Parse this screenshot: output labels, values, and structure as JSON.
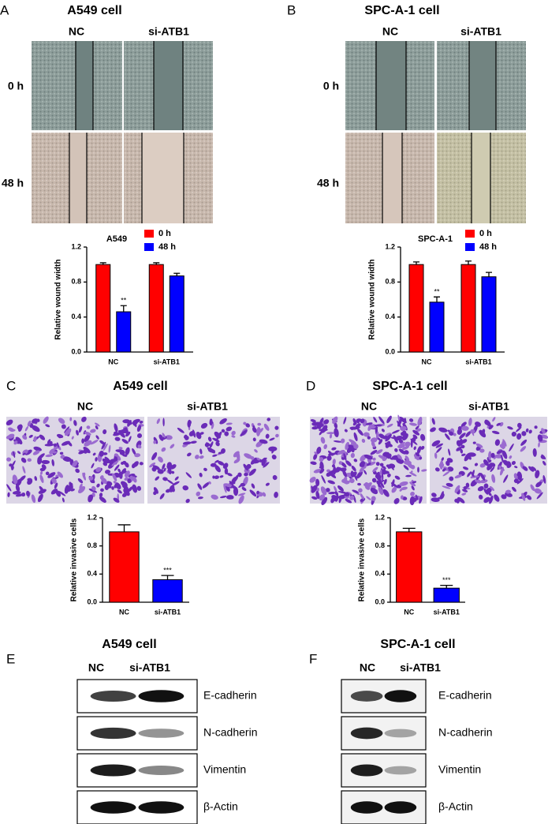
{
  "panels": {
    "A": {
      "letter": "A",
      "title": "A549 cell",
      "columns": [
        "NC",
        "si-ATB1"
      ],
      "rows": [
        "0 h",
        "48 h"
      ]
    },
    "B": {
      "letter": "B",
      "title": "SPC-A-1 cell",
      "columns": [
        "NC",
        "si-ATB1"
      ],
      "rows": [
        "0 h",
        "48 h"
      ]
    },
    "C": {
      "letter": "C",
      "title": "A549 cell",
      "columns": [
        "NC",
        "si-ATB1"
      ]
    },
    "D": {
      "letter": "D",
      "title": "SPC-A-1 cell",
      "columns": [
        "NC",
        "si-ATB1"
      ]
    },
    "E": {
      "letter": "E",
      "title": "A549 cell",
      "columns": [
        "NC",
        "si-ATB1"
      ],
      "bands": [
        "E-cadherin",
        "N-cadherin",
        "Vimentin",
        "β-Actin"
      ]
    },
    "F": {
      "letter": "F",
      "title": "SPC-A-1 cell",
      "columns": [
        "NC",
        "si-ATB1"
      ],
      "bands": [
        "E-cadherin",
        "N-cadherin",
        "Vimentin",
        "β-Actin"
      ]
    }
  },
  "chart_data": [
    {
      "type": "grouped-bar",
      "title": "A549",
      "y_label": "Relative wound width",
      "categories": [
        "NC",
        "si-ATB1"
      ],
      "series": [
        {
          "name": "0 h",
          "color": "#ff0000",
          "values": [
            1.0,
            1.0
          ],
          "errors": [
            0.02,
            0.02
          ]
        },
        {
          "name": "48 h",
          "color": "#0000ff",
          "values": [
            0.46,
            0.87
          ],
          "errors": [
            0.07,
            0.03
          ],
          "significance": [
            "**",
            null
          ]
        }
      ],
      "ylim": [
        0,
        1.2
      ],
      "yticks": [
        {
          "value": 0,
          "label": "0.0"
        },
        0.4,
        0.8,
        1.2
      ]
    },
    {
      "type": "grouped-bar",
      "title": "SPC-A-1",
      "y_label": "Relative wound width",
      "categories": [
        "NC",
        "si-ATB1"
      ],
      "series": [
        {
          "name": "0 h",
          "color": "#ff0000",
          "values": [
            1.0,
            1.0
          ],
          "errors": [
            0.03,
            0.04
          ]
        },
        {
          "name": "48 h",
          "color": "#0000ff",
          "values": [
            0.57,
            0.86
          ],
          "errors": [
            0.06,
            0.05
          ],
          "significance": [
            "**",
            null
          ]
        }
      ],
      "ylim": [
        0,
        1.2
      ],
      "yticks": [
        {
          "value": 0,
          "label": "0.0"
        },
        0.4,
        0.8,
        1.2
      ]
    },
    {
      "type": "bar",
      "y_label": "Relative invasive cells",
      "categories": [
        "NC",
        "si-ATB1"
      ],
      "values": [
        1.0,
        0.32
      ],
      "errors": [
        0.1,
        0.06
      ],
      "colors": [
        "#ff0000",
        "#0000ff"
      ],
      "significance": [
        null,
        "***"
      ],
      "ylim": [
        0,
        1.2
      ],
      "yticks": [
        {
          "value": 0,
          "label": "0.0"
        },
        0.4,
        0.8,
        1.2
      ]
    },
    {
      "type": "bar",
      "y_label": "Relative invasive cells",
      "categories": [
        "NC",
        "si-ATB1"
      ],
      "values": [
        1.0,
        0.2
      ],
      "errors": [
        0.05,
        0.04
      ],
      "colors": [
        "#ff0000",
        "#0000ff"
      ],
      "significance": [
        null,
        "***"
      ],
      "ylim": [
        0,
        1.2
      ],
      "yticks": [
        {
          "value": 0,
          "label": "0.0"
        },
        0.4,
        0.8,
        1.2
      ]
    }
  ]
}
